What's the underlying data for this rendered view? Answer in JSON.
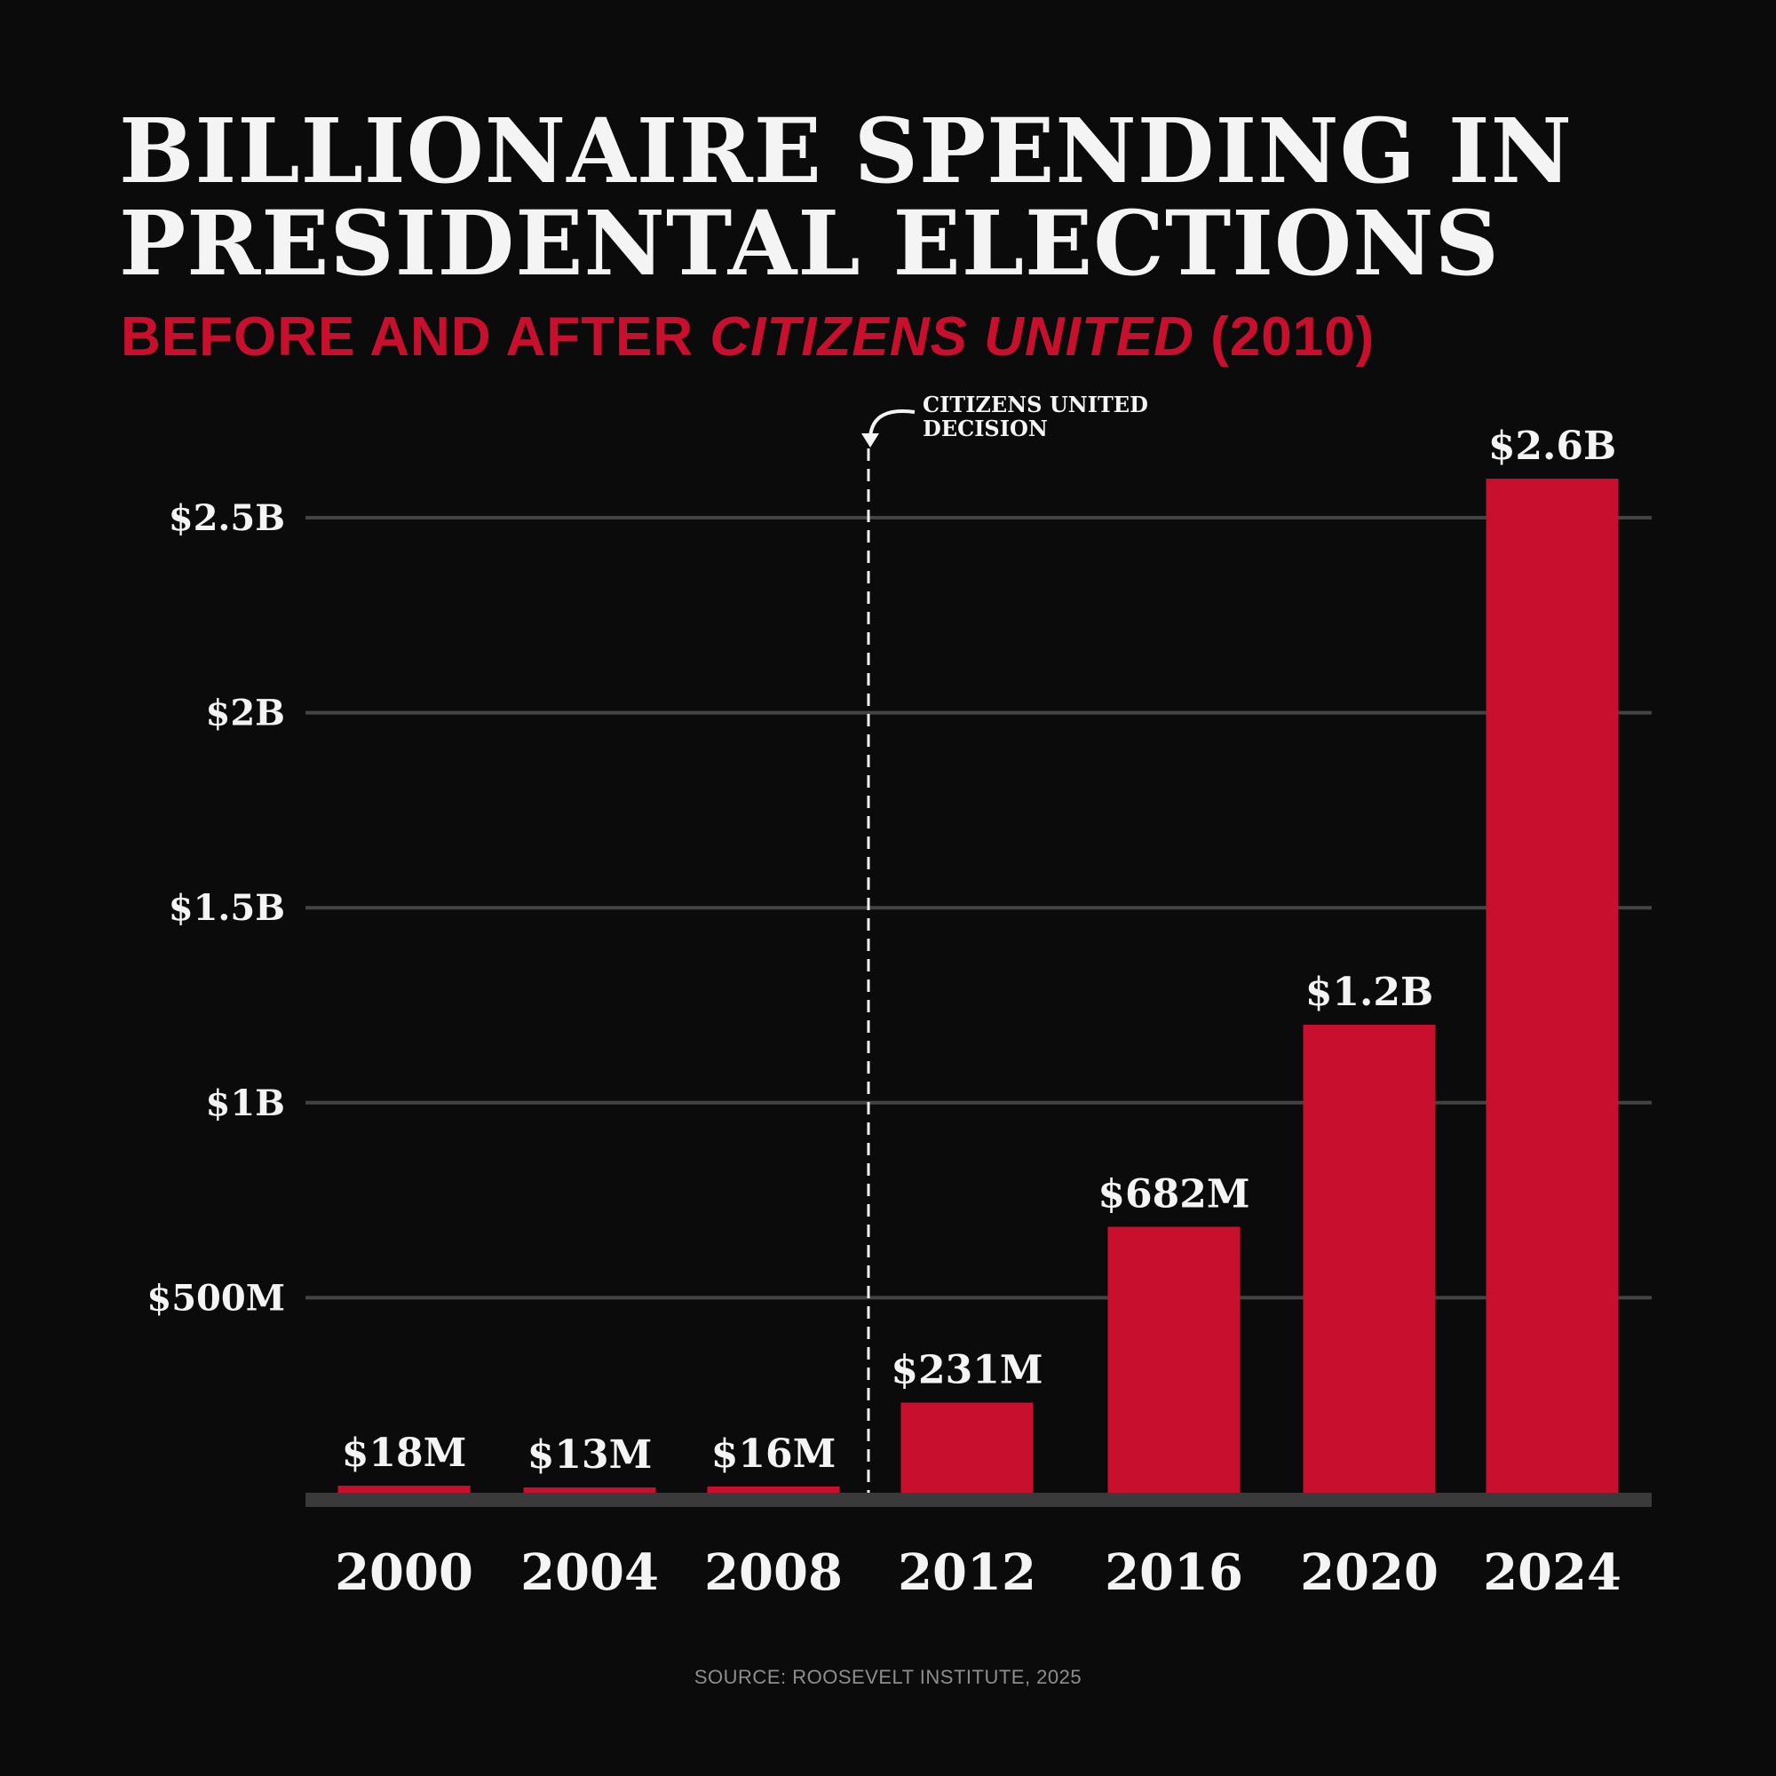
{
  "chart_data": {
    "type": "bar",
    "title": "BILLIONAIRE SPENDING IN PRESIDENTAL ELECTIONS",
    "title_lines": [
      "BILLIONAIRE SPENDING IN",
      "PRESIDENTAL ELECTIONS"
    ],
    "subtitle": {
      "prefix": "BEFORE AND AFTER ",
      "italic": "CITIZENS UNITED",
      "suffix": " (2010)"
    },
    "categories": [
      "2000",
      "2004",
      "2008",
      "2012",
      "2016",
      "2020",
      "2024"
    ],
    "values": [
      18,
      13,
      16,
      231,
      682,
      1200,
      2600
    ],
    "value_unit": "millions USD",
    "data_labels": [
      "$18M",
      "$13M",
      "$16M",
      "$231M",
      "$682M",
      "$1.2B",
      "$2.6B"
    ],
    "ylim": [
      0,
      2600
    ],
    "yticks": [
      500,
      1000,
      1500,
      2000,
      2500
    ],
    "ytick_labels": [
      "$500M",
      "$1B",
      "$1.5B",
      "$2B",
      "$2.5B"
    ],
    "grid": true,
    "annotation": {
      "lines": [
        "CITIZENS UNITED",
        "DECISION"
      ],
      "between": [
        "2008",
        "2012"
      ]
    },
    "source": "SOURCE: ROOSEVELT INSTITUTE, 2025",
    "colors": {
      "bar": "#c8102e",
      "background": "#0b0b0b",
      "grid": "#444444",
      "text": "#f4f4f4"
    }
  }
}
